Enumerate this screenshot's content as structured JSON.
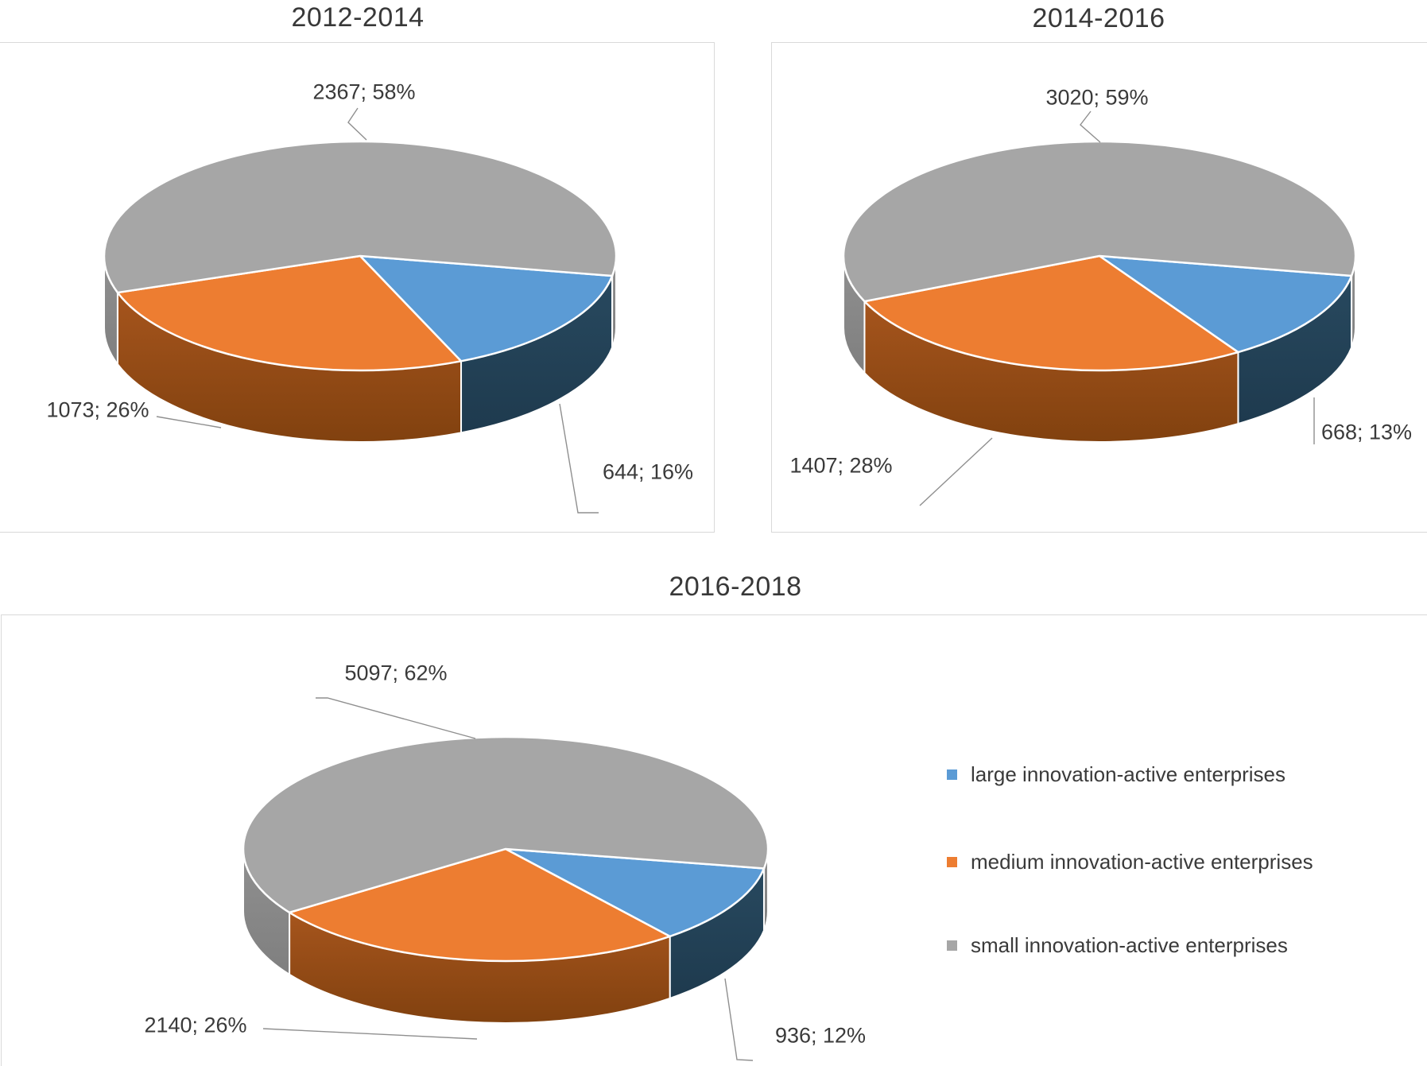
{
  "chart_data": [
    {
      "type": "pie",
      "title": "2012-2014",
      "effect": "3d",
      "label_format": "value; percent",
      "slices": [
        {
          "category": "large innovation-active enterprises",
          "value": 644,
          "pct": "16%",
          "data_label": "644; 16%"
        },
        {
          "category": "medium innovation-active enterprises",
          "value": 1073,
          "pct": "26%",
          "data_label": "1073; 26%"
        },
        {
          "category": "small innovation-active enterprises",
          "value": 2367,
          "pct": "58%",
          "data_label": "2367; 58%"
        }
      ]
    },
    {
      "type": "pie",
      "title": "2014-2016",
      "effect": "3d",
      "label_format": "value; percent",
      "slices": [
        {
          "category": "large innovation-active enterprises",
          "value": 668,
          "pct": "13%",
          "data_label": "668; 13%"
        },
        {
          "category": "medium innovation-active enterprises",
          "value": 1407,
          "pct": "28%",
          "data_label": "1407; 28%"
        },
        {
          "category": "small innovation-active enterprises",
          "value": 3020,
          "pct": "59%",
          "data_label": "3020; 59%"
        }
      ]
    },
    {
      "type": "pie",
      "title": "2016-2018",
      "effect": "3d",
      "label_format": "value; percent",
      "slices": [
        {
          "category": "large innovation-active enterprises",
          "value": 936,
          "pct": "12%",
          "data_label": "936; 12%"
        },
        {
          "category": "medium innovation-active enterprises",
          "value": 2140,
          "pct": "26%",
          "data_label": "2140; 26%"
        },
        {
          "category": "small innovation-active enterprises",
          "value": 5097,
          "pct": "62%",
          "data_label": "5097; 62%"
        }
      ]
    }
  ],
  "legend": {
    "position": "middle-right",
    "items": [
      {
        "label": "large innovation-active enterprises",
        "color": "#5B9BD5"
      },
      {
        "label": "medium innovation-active enterprises",
        "color": "#ED7D31"
      },
      {
        "label": "small innovation-active enterprises",
        "color": "#A6A6A6"
      }
    ]
  },
  "style": {
    "slice_colors": [
      "#5B9BD5",
      "#ED7D31",
      "#A6A6A6"
    ],
    "wall_colors": [
      "#28495F",
      "#A6551D",
      "#909090"
    ],
    "wall_colors_dark": [
      "#1E3A4E",
      "#81410F",
      "#7F7F7F"
    ],
    "panel_border_color": "#D9D9D9",
    "text_color": "#3A3A3A",
    "leader_color": "#8F8F8F",
    "separator_color": "#FFFFFF"
  }
}
